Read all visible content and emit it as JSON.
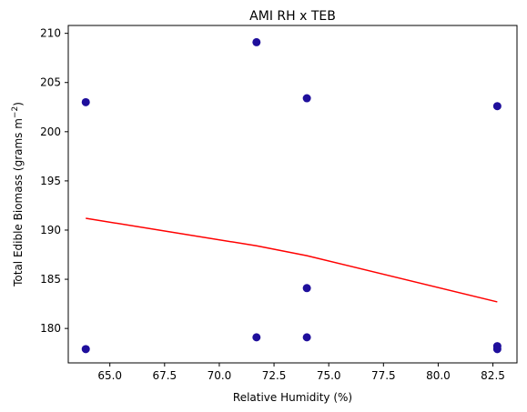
{
  "chart_data": {
    "type": "scatter",
    "title": "AMI RH x TEB",
    "xlabel": "Relative Humidity (%)",
    "ylabel_main": "Total Edible Biomass (grams m",
    "ylabel_sup": "−2",
    "ylabel_end": ")",
    "xlim": [
      63.1,
      83.6
    ],
    "ylim": [
      176.5,
      210.8
    ],
    "x_ticks": [
      65.0,
      67.5,
      70.0,
      72.5,
      75.0,
      77.5,
      80.0,
      82.5
    ],
    "x_tick_labels": [
      "65.0",
      "67.5",
      "70.0",
      "72.5",
      "75.0",
      "77.5",
      "80.0",
      "82.5"
    ],
    "y_ticks": [
      180,
      185,
      190,
      195,
      200,
      205,
      210
    ],
    "y_tick_labels": [
      "180",
      "185",
      "190",
      "195",
      "200",
      "205",
      "210"
    ],
    "points": [
      {
        "x": 63.9,
        "y": 203.0
      },
      {
        "x": 63.9,
        "y": 177.9
      },
      {
        "x": 71.7,
        "y": 209.1
      },
      {
        "x": 71.7,
        "y": 179.1
      },
      {
        "x": 74.0,
        "y": 203.4
      },
      {
        "x": 74.0,
        "y": 184.1
      },
      {
        "x": 74.0,
        "y": 179.1
      },
      {
        "x": 82.7,
        "y": 202.6
      },
      {
        "x": 82.7,
        "y": 178.2
      },
      {
        "x": 82.7,
        "y": 177.9
      }
    ],
    "trend_line": [
      {
        "x": 63.9,
        "y": 191.2
      },
      {
        "x": 71.7,
        "y": 188.4
      },
      {
        "x": 74.0,
        "y": 187.4
      },
      {
        "x": 82.7,
        "y": 182.7
      }
    ],
    "point_color": "#1f0f9c",
    "trend_color": "#ff0000",
    "grid": false
  }
}
